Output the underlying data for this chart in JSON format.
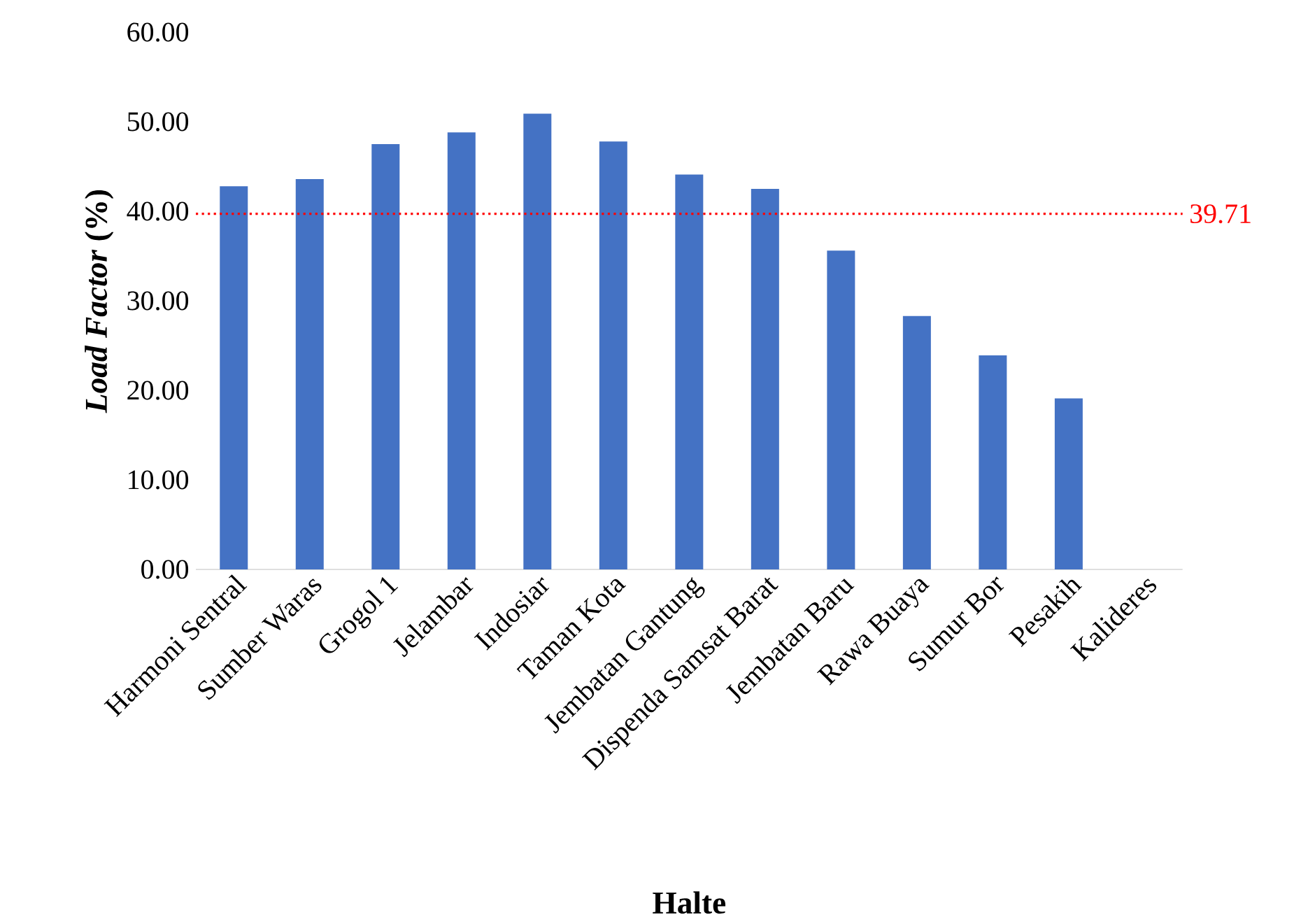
{
  "chart_data": {
    "type": "bar",
    "xlabel": "Halte",
    "ylabel": "*Load Factor* (%)",
    "categories": [
      "Harmoni Sentral",
      "Sumber Waras",
      "Grogol 1",
      "Jelambar",
      "Indosiar",
      "Taman Kota",
      "Jembatan Gantung",
      "Dispenda Samsat Barat",
      "Jembatan Baru",
      "Rawa Buaya",
      "Sumur Bor",
      "Pesakih",
      "Kalideres"
    ],
    "values": [
      42.8,
      43.6,
      47.5,
      48.8,
      50.9,
      47.8,
      44.1,
      42.5,
      35.6,
      28.3,
      23.9,
      19.1,
      0
    ],
    "color": "#4472c4",
    "ylim": [
      0,
      60
    ],
    "yticks": [
      {
        "value": 0,
        "label": "0.00"
      },
      {
        "value": 10,
        "label": "10.00"
      },
      {
        "value": 20,
        "label": "20.00"
      },
      {
        "value": 30,
        "label": "30.00"
      },
      {
        "value": 40,
        "label": "40.00"
      },
      {
        "value": 50,
        "label": "50.00"
      },
      {
        "value": 60,
        "label": "60.00"
      }
    ],
    "ref_lines": [
      {
        "axis": "y",
        "value": 39.71,
        "label": "39.71",
        "color": "#ff0000",
        "line_style": "dotted"
      }
    ],
    "grid": false
  }
}
